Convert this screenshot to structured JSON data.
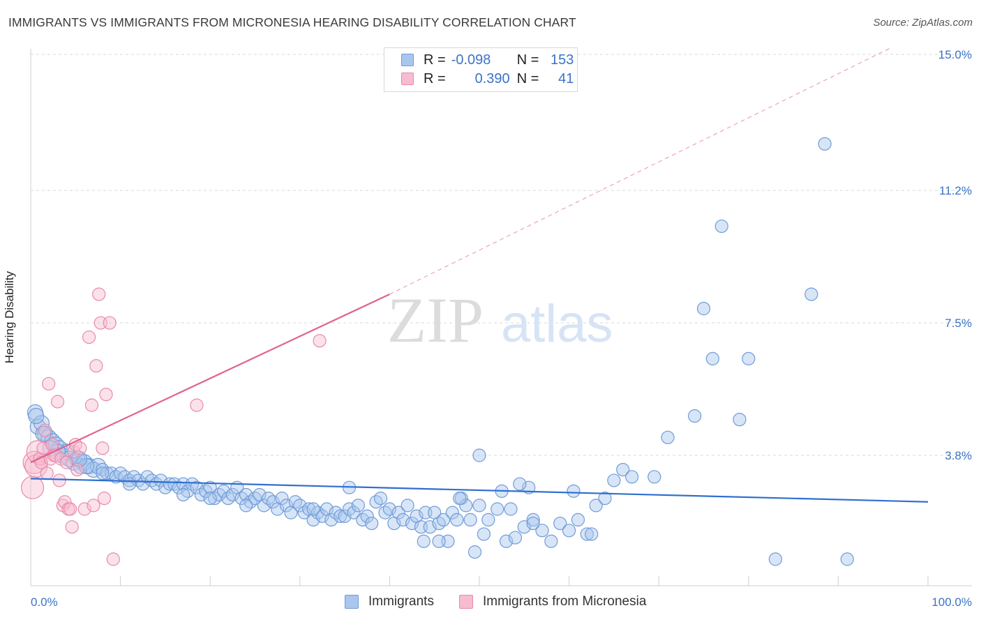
{
  "header": {
    "title": "IMMIGRANTS VS IMMIGRANTS FROM MICRONESIA HEARING DISABILITY CORRELATION CHART",
    "source": "Source: ZipAtlas.com"
  },
  "legend_top": {
    "rows": [
      {
        "r_label": "R =",
        "r_value": "-0.098",
        "n_label": "N =",
        "n_value": "153",
        "color": "#a9c6ee",
        "border": "#6f9bd8"
      },
      {
        "r_label": "R =",
        "r_value": "0.390",
        "n_label": "N =",
        "n_value": "41",
        "color": "#f7bcd0",
        "border": "#e88aa9"
      }
    ]
  },
  "legend_bottom": {
    "items": [
      {
        "label": "Immigrants",
        "color": "#a9c6ee",
        "border": "#6f9bd8"
      },
      {
        "label": "Immigrants from Micronesia",
        "color": "#f7bcd0",
        "border": "#e88aa9"
      }
    ]
  },
  "watermark": {
    "part1": "ZIP",
    "part2": "atlas"
  },
  "chart_data": {
    "type": "scatter",
    "ylabel": "Hearing Disability",
    "xlim": [
      0,
      100
    ],
    "ylim": [
      0,
      15.5
    ],
    "x_tick_labels": {
      "left": "0.0%",
      "right": "100.0%"
    },
    "y_ticks": [
      {
        "value": 3.8,
        "label": "3.8%"
      },
      {
        "value": 7.5,
        "label": "7.5%"
      },
      {
        "value": 11.2,
        "label": "11.2%"
      },
      {
        "value": 15.0,
        "label": "15.0%"
      }
    ],
    "grid": "horizontal dashed",
    "series": [
      {
        "name": "Immigrants",
        "color": "#a9c6ee",
        "stroke": "#6f9bd8",
        "trend": {
          "x0": 0,
          "y0": 3.15,
          "x1": 100,
          "y1": 2.5,
          "color": "#2f6fcf"
        },
        "points": [
          [
            0.5,
            5.0
          ],
          [
            0.8,
            4.6
          ],
          [
            1.2,
            4.7
          ],
          [
            1.6,
            4.4
          ],
          [
            2.0,
            4.3
          ],
          [
            2.4,
            4.2
          ],
          [
            2.8,
            4.1
          ],
          [
            3.2,
            4.0
          ],
          [
            3.5,
            3.8
          ],
          [
            4.0,
            3.9
          ],
          [
            4.3,
            3.7
          ],
          [
            4.8,
            3.6
          ],
          [
            5.2,
            3.7
          ],
          [
            5.6,
            3.5
          ],
          [
            6.0,
            3.6
          ],
          [
            6.5,
            3.5
          ],
          [
            7.0,
            3.4
          ],
          [
            7.5,
            3.5
          ],
          [
            8.0,
            3.4
          ],
          [
            8.5,
            3.3
          ],
          [
            9.0,
            3.3
          ],
          [
            9.5,
            3.2
          ],
          [
            10.0,
            3.3
          ],
          [
            10.5,
            3.2
          ],
          [
            11.0,
            3.1
          ],
          [
            11.5,
            3.2
          ],
          [
            12.0,
            3.1
          ],
          [
            12.5,
            3.0
          ],
          [
            13.0,
            3.2
          ],
          [
            13.5,
            3.1
          ],
          [
            14.0,
            3.0
          ],
          [
            14.5,
            3.1
          ],
          [
            15.0,
            2.9
          ],
          [
            15.5,
            3.0
          ],
          [
            16.0,
            3.0
          ],
          [
            16.5,
            2.9
          ],
          [
            17.0,
            3.0
          ],
          [
            17.5,
            2.8
          ],
          [
            18.0,
            3.0
          ],
          [
            18.5,
            2.9
          ],
          [
            19.0,
            2.7
          ],
          [
            19.5,
            2.8
          ],
          [
            20.0,
            2.9
          ],
          [
            20.5,
            2.6
          ],
          [
            21.0,
            2.7
          ],
          [
            21.5,
            2.8
          ],
          [
            22.0,
            2.6
          ],
          [
            22.5,
            2.7
          ],
          [
            23.0,
            2.9
          ],
          [
            23.5,
            2.6
          ],
          [
            24.0,
            2.7
          ],
          [
            24.5,
            2.5
          ],
          [
            25.0,
            2.6
          ],
          [
            25.5,
            2.7
          ],
          [
            26.0,
            2.4
          ],
          [
            26.5,
            2.6
          ],
          [
            27.0,
            2.5
          ],
          [
            27.5,
            2.3
          ],
          [
            28.0,
            2.6
          ],
          [
            28.5,
            2.4
          ],
          [
            29.0,
            2.2
          ],
          [
            29.5,
            2.5
          ],
          [
            30.0,
            2.4
          ],
          [
            30.5,
            2.2
          ],
          [
            31.0,
            2.3
          ],
          [
            31.5,
            2.0
          ],
          [
            32.0,
            2.2
          ],
          [
            32.5,
            2.1
          ],
          [
            33.0,
            2.3
          ],
          [
            33.5,
            2.0
          ],
          [
            34.0,
            2.2
          ],
          [
            34.5,
            2.1
          ],
          [
            35.0,
            2.1
          ],
          [
            35.5,
            2.3
          ],
          [
            36.0,
            2.2
          ],
          [
            36.5,
            2.4
          ],
          [
            37.0,
            2.0
          ],
          [
            37.5,
            2.1
          ],
          [
            38.0,
            1.9
          ],
          [
            38.5,
            2.5
          ],
          [
            39.0,
            2.6
          ],
          [
            39.5,
            2.2
          ],
          [
            40.0,
            2.3
          ],
          [
            40.5,
            1.9
          ],
          [
            41.0,
            2.2
          ],
          [
            41.5,
            2.0
          ],
          [
            42.0,
            2.4
          ],
          [
            42.5,
            1.9
          ],
          [
            43.0,
            2.1
          ],
          [
            43.5,
            1.8
          ],
          [
            44.0,
            2.2
          ],
          [
            44.5,
            1.8
          ],
          [
            45.0,
            2.2
          ],
          [
            45.5,
            1.9
          ],
          [
            46.0,
            2.0
          ],
          [
            46.5,
            1.4
          ],
          [
            47.0,
            2.2
          ],
          [
            47.5,
            2.0
          ],
          [
            48.0,
            2.6
          ],
          [
            48.5,
            2.4
          ],
          [
            49.0,
            2.0
          ],
          [
            50.0,
            2.4
          ],
          [
            50.5,
            1.6
          ],
          [
            51.0,
            2.0
          ],
          [
            52.0,
            2.3
          ],
          [
            53.0,
            1.4
          ],
          [
            53.5,
            2.3
          ],
          [
            54.0,
            1.5
          ],
          [
            55.0,
            1.8
          ],
          [
            56.0,
            2.0
          ],
          [
            57.0,
            1.7
          ],
          [
            58.0,
            1.4
          ],
          [
            59.0,
            1.9
          ],
          [
            60.0,
            1.7
          ],
          [
            61.0,
            2.0
          ],
          [
            62.0,
            1.6
          ],
          [
            63.0,
            2.4
          ],
          [
            64.0,
            2.6
          ],
          [
            65.0,
            3.1
          ],
          [
            66.0,
            3.4
          ],
          [
            67.0,
            3.2
          ],
          [
            52.5,
            2.8
          ],
          [
            55.5,
            2.9
          ],
          [
            60.5,
            2.8
          ],
          [
            62.5,
            1.6
          ],
          [
            45.5,
            1.4
          ],
          [
            43.8,
            1.4
          ],
          [
            49.5,
            1.1
          ],
          [
            56.0,
            1.9
          ],
          [
            47.8,
            2.6
          ],
          [
            35.5,
            2.9
          ],
          [
            31.5,
            2.3
          ],
          [
            24.0,
            2.4
          ],
          [
            20.0,
            2.6
          ],
          [
            17.0,
            2.7
          ],
          [
            11.0,
            3.0
          ],
          [
            8.0,
            3.3
          ],
          [
            6.2,
            3.5
          ],
          [
            5.4,
            3.7
          ],
          [
            3.0,
            3.9
          ],
          [
            2.2,
            4.0
          ],
          [
            1.4,
            4.4
          ],
          [
            0.6,
            4.9
          ],
          [
            54.5,
            3.0
          ],
          [
            69.5,
            3.2
          ],
          [
            50.0,
            3.8
          ],
          [
            74.0,
            4.9
          ],
          [
            71.0,
            4.3
          ],
          [
            75.0,
            7.9
          ],
          [
            76.0,
            6.5
          ],
          [
            77.0,
            10.2
          ],
          [
            79.0,
            4.8
          ],
          [
            80.0,
            6.5
          ],
          [
            83.0,
            0.9
          ],
          [
            87.0,
            8.3
          ],
          [
            88.5,
            12.5
          ],
          [
            91.0,
            0.9
          ]
        ]
      },
      {
        "name": "Immigrants from Micronesia",
        "color": "#f7bcd0",
        "stroke": "#e88aa9",
        "trend": {
          "x0": 0,
          "y0": 3.6,
          "x1": 40,
          "y1": 8.3,
          "x_ext": 96,
          "y_ext": 15.2,
          "color": "#e0628f"
        },
        "points": [
          [
            0.2,
            2.9
          ],
          [
            0.4,
            3.6
          ],
          [
            0.6,
            3.5
          ],
          [
            0.8,
            3.9
          ],
          [
            1.0,
            3.7
          ],
          [
            1.2,
            3.6
          ],
          [
            1.4,
            4.0
          ],
          [
            1.6,
            4.5
          ],
          [
            1.8,
            3.3
          ],
          [
            2.0,
            5.8
          ],
          [
            2.2,
            3.7
          ],
          [
            2.4,
            4.1
          ],
          [
            2.6,
            3.8
          ],
          [
            2.8,
            3.8
          ],
          [
            3.0,
            5.3
          ],
          [
            3.2,
            3.1
          ],
          [
            3.4,
            3.7
          ],
          [
            3.6,
            2.4
          ],
          [
            3.8,
            2.5
          ],
          [
            4.0,
            3.6
          ],
          [
            4.2,
            2.3
          ],
          [
            4.4,
            2.3
          ],
          [
            4.6,
            1.8
          ],
          [
            4.8,
            3.9
          ],
          [
            5.0,
            4.1
          ],
          [
            5.2,
            3.4
          ],
          [
            5.5,
            4.0
          ],
          [
            6.0,
            2.3
          ],
          [
            6.5,
            7.1
          ],
          [
            6.8,
            5.2
          ],
          [
            7.0,
            2.4
          ],
          [
            7.3,
            6.3
          ],
          [
            7.6,
            8.3
          ],
          [
            7.8,
            7.5
          ],
          [
            8.0,
            4.0
          ],
          [
            8.2,
            2.6
          ],
          [
            8.4,
            5.5
          ],
          [
            8.8,
            7.5
          ],
          [
            9.2,
            0.9
          ],
          [
            18.5,
            5.2
          ],
          [
            32.2,
            7.0
          ]
        ]
      }
    ]
  }
}
